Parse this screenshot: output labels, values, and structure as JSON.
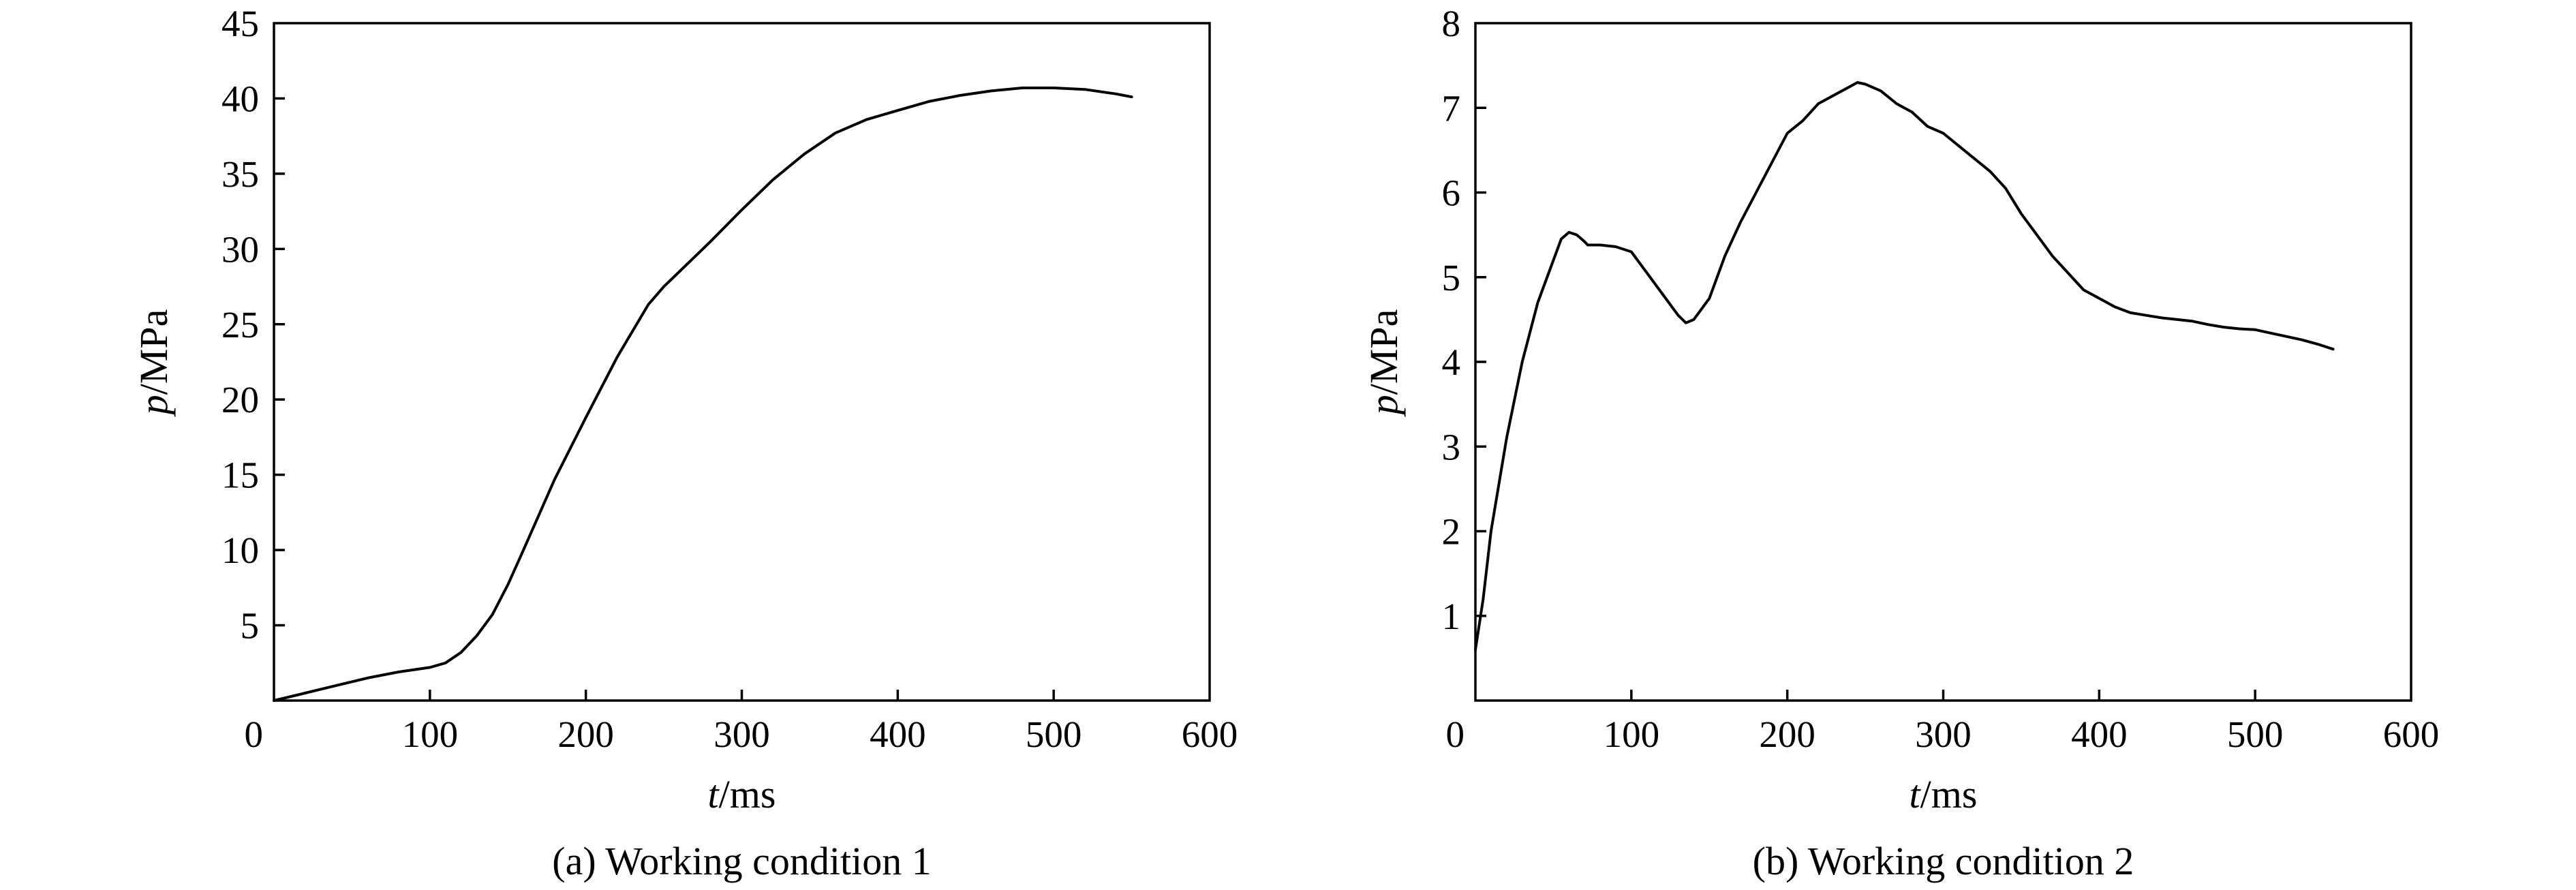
{
  "chart_data": [
    {
      "type": "line",
      "caption": "(a) Working condition 1",
      "xlabel": {
        "symbol": "t",
        "unit": "/ms"
      },
      "ylabel": {
        "symbol": "p",
        "unit": "/MPa"
      },
      "xlim": [
        0,
        600
      ],
      "ylim": [
        0,
        45
      ],
      "xticks": [
        0,
        100,
        200,
        300,
        400,
        500,
        600
      ],
      "yticks": [
        5,
        10,
        15,
        20,
        25,
        30,
        35,
        40,
        45
      ],
      "grid": false,
      "legend": "none",
      "series": [
        {
          "x": [
            0,
            20,
            40,
            60,
            80,
            100,
            110,
            120,
            130,
            140,
            150,
            160,
            180,
            200,
            220,
            240,
            250,
            260,
            280,
            300,
            320,
            340,
            360,
            380,
            400,
            420,
            440,
            460,
            480,
            500,
            520,
            540,
            550
          ],
          "y": [
            0,
            0.5,
            1.0,
            1.5,
            1.9,
            2.2,
            2.5,
            3.2,
            4.3,
            5.7,
            7.7,
            10.0,
            14.7,
            18.8,
            22.8,
            26.3,
            27.5,
            28.5,
            30.5,
            32.6,
            34.6,
            36.3,
            37.7,
            38.6,
            39.2,
            39.8,
            40.2,
            40.5,
            40.7,
            40.7,
            40.6,
            40.3,
            40.1
          ]
        }
      ]
    },
    {
      "type": "line",
      "caption": "(b) Working condition 2",
      "xlabel": {
        "symbol": "t",
        "unit": "/ms"
      },
      "ylabel": {
        "symbol": "p",
        "unit": "/MPa"
      },
      "xlim": [
        0,
        600
      ],
      "ylim": [
        0,
        8
      ],
      "xticks": [
        0,
        100,
        200,
        300,
        400,
        500,
        600
      ],
      "yticks": [
        1,
        2,
        3,
        4,
        5,
        6,
        7,
        8
      ],
      "grid": false,
      "legend": "none",
      "series": [
        {
          "x": [
            0,
            5,
            10,
            20,
            30,
            40,
            50,
            55,
            60,
            65,
            70,
            72,
            80,
            90,
            100,
            110,
            120,
            130,
            135,
            140,
            150,
            160,
            170,
            180,
            190,
            200,
            210,
            220,
            230,
            240,
            245,
            250,
            260,
            270,
            280,
            290,
            300,
            310,
            320,
            330,
            340,
            350,
            360,
            370,
            380,
            390,
            400,
            410,
            420,
            430,
            440,
            450,
            460,
            470,
            480,
            490,
            500,
            510,
            520,
            530,
            540,
            550
          ],
          "y": [
            0.6,
            1.2,
            2.0,
            3.1,
            4.0,
            4.7,
            5.2,
            5.45,
            5.53,
            5.5,
            5.42,
            5.38,
            5.38,
            5.36,
            5.3,
            5.05,
            4.8,
            4.55,
            4.46,
            4.5,
            4.75,
            5.25,
            5.65,
            6.0,
            6.35,
            6.7,
            6.85,
            7.05,
            7.15,
            7.25,
            7.3,
            7.28,
            7.2,
            7.05,
            6.95,
            6.78,
            6.7,
            6.55,
            6.4,
            6.25,
            6.05,
            5.75,
            5.5,
            5.25,
            5.05,
            4.85,
            4.75,
            4.65,
            4.58,
            4.55,
            4.52,
            4.5,
            4.48,
            4.44,
            4.41,
            4.39,
            4.38,
            4.34,
            4.3,
            4.26,
            4.21,
            4.15
          ]
        }
      ]
    }
  ]
}
